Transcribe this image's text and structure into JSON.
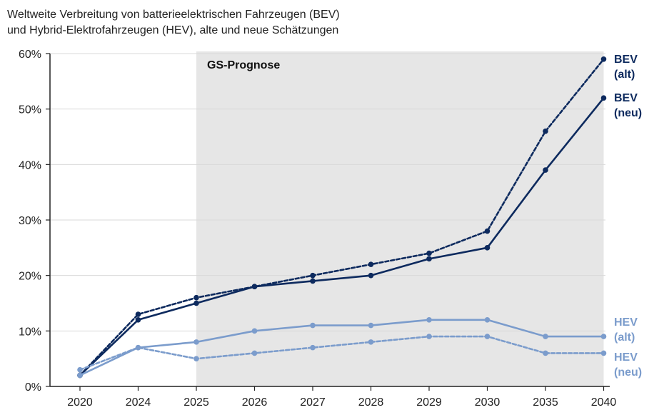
{
  "title": {
    "line1": "Weltweite Verbreitung von batterieelektrischen Fahrzeugen (BEV)",
    "line2": "und Hybrid-Elektrofahrzeugen (HEV), alte und neue Schätzungen"
  },
  "colors": {
    "dark": "#0d2a5e",
    "light": "#7b9ccc",
    "band": "#e6e6e6",
    "grid": "#d9d9d9",
    "axis": "#222222"
  },
  "chart_data": {
    "type": "line",
    "categories": [
      "2020",
      "2024",
      "2025",
      "2026",
      "2027",
      "2028",
      "2029",
      "2030",
      "2035",
      "2040"
    ],
    "y_tick_labels": [
      "0%",
      "10%",
      "20%",
      "30%",
      "40%",
      "50%",
      "60%"
    ],
    "ylim": [
      0,
      60
    ],
    "grid": true,
    "band": {
      "label": "GS-Prognose",
      "from": "2025",
      "to": "2040"
    },
    "series": [
      {
        "key": "bev_alt",
        "name_line1": "BEV",
        "name_line2": "(alt)",
        "color": "#0d2a5e",
        "dashed": true,
        "values": [
          2,
          13,
          16,
          18,
          20,
          22,
          24,
          28,
          46,
          59
        ]
      },
      {
        "key": "bev_neu",
        "name_line1": "BEV",
        "name_line2": "(neu)",
        "color": "#0d2a5e",
        "dashed": false,
        "values": [
          2,
          12,
          15,
          18,
          19,
          20,
          23,
          25,
          39,
          52
        ]
      },
      {
        "key": "hev_alt",
        "name_line1": "HEV",
        "name_line2": "(alt)",
        "color": "#7b9ccc",
        "dashed": false,
        "values": [
          2,
          7,
          8,
          10,
          11,
          11,
          12,
          12,
          9,
          9
        ]
      },
      {
        "key": "hev_neu",
        "name_line1": "HEV",
        "name_line2": "(neu)",
        "color": "#7b9ccc",
        "dashed": true,
        "values": [
          3,
          7,
          5,
          6,
          7,
          8,
          9,
          9,
          6,
          6
        ]
      }
    ]
  }
}
